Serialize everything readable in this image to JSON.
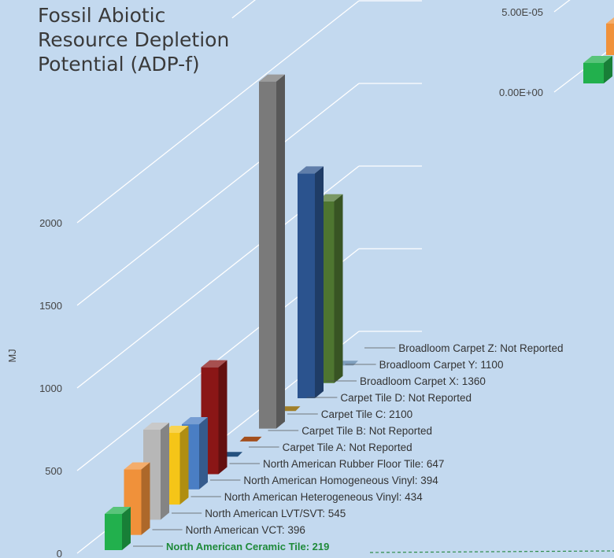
{
  "chart_data": {
    "type": "bar",
    "title_lines": [
      "Fossil Abiotic",
      "Resource Depletion",
      "Potential (ADP-f)"
    ],
    "ylabel": "MJ",
    "yticks": [
      0,
      500,
      1000,
      1500,
      2000
    ],
    "ylim": [
      0,
      2400
    ],
    "inset_ticks": [
      "5.00E-05",
      "0.00E+00"
    ],
    "highlight_category": "North American Ceramic Tile",
    "series": [
      {
        "category": "North American Ceramic Tile",
        "value": 219,
        "value_label": "219",
        "color": "#22b04d"
      },
      {
        "category": "North American VCT",
        "value": 396,
        "value_label": "396",
        "color": "#f0913a"
      },
      {
        "category": "North American LVT/SVT",
        "value": 545,
        "value_label": "545",
        "color": "#b7b7b7"
      },
      {
        "category": "North American Heterogeneous Vinyl",
        "value": 434,
        "value_label": "434",
        "color": "#f5c518"
      },
      {
        "category": "North American Homogeneous Vinyl",
        "value": 394,
        "value_label": "394",
        "color": "#4a7ec4"
      },
      {
        "category": "North American Rubber Floor Tile",
        "value": 647,
        "value_label": "647",
        "color": "#8a1616"
      },
      {
        "category": "Carpet Tile A",
        "value": null,
        "value_label": "Not Reported",
        "color": "#24517f"
      },
      {
        "category": "Carpet Tile B",
        "value": null,
        "value_label": "Not Reported",
        "color": "#a34f1d"
      },
      {
        "category": "Carpet Tile C",
        "value": 2100,
        "value_label": "2100",
        "color": "#7a7a7a"
      },
      {
        "category": "Carpet Tile D",
        "value": null,
        "value_label": "Not Reported",
        "color": "#a07f2a"
      },
      {
        "category": "Broadloom Carpet  X",
        "value": 1360,
        "value_label": "1360",
        "color": "#2b538e"
      },
      {
        "category": "Broadloom Carpet  Y",
        "value": 1100,
        "value_label": "1100",
        "color": "#4e7530"
      },
      {
        "category": "Broadloom Carpet  Z",
        "value": null,
        "value_label": "Not Reported",
        "color": "#7f9fbe"
      }
    ]
  }
}
